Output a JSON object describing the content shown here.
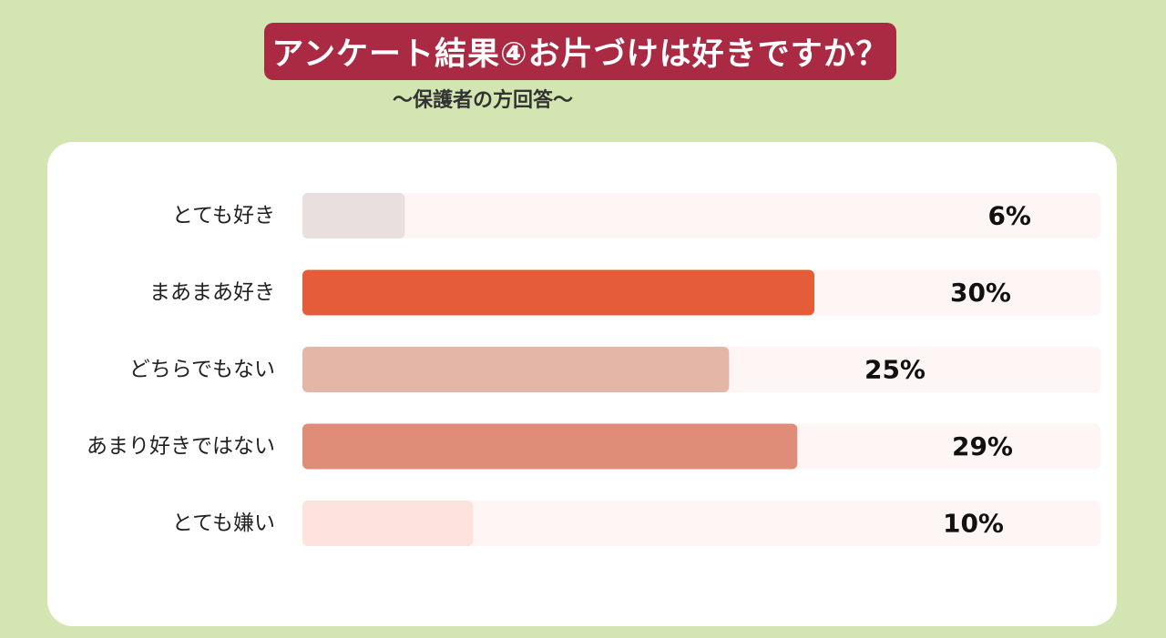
{
  "header": {
    "title": "アンケート結果④お片づけは好きですか？",
    "subtitle": "〜保護者の方回答〜"
  },
  "chart_data": {
    "type": "bar",
    "orientation": "horizontal",
    "title": "アンケート結果④お片づけは好きですか？",
    "subtitle": "〜保護者の方回答〜",
    "categories": [
      "とても好き",
      "まあまあ好き",
      "どちらでもない",
      "あまり好きではない",
      "とても嫌い"
    ],
    "values": [
      6,
      30,
      25,
      29,
      10
    ],
    "value_labels": [
      "6%",
      "30%",
      "25%",
      "29%",
      "10%"
    ],
    "xlim": [
      0,
      50
    ],
    "unit": "%",
    "grid": false,
    "legend": "none",
    "colors": [
      "#e9dfde",
      "#e55c38",
      "#e4b6a8",
      "#df8c78",
      "#fde2dd"
    ],
    "track_color": "#fdf6f4"
  }
}
